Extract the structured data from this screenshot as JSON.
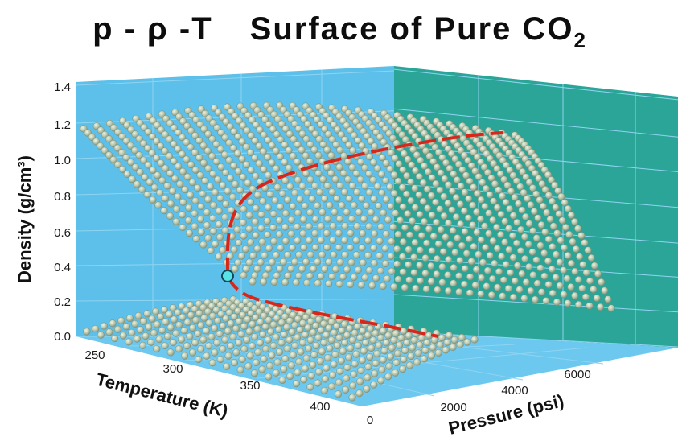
{
  "title": {
    "prefix": "p - ρ -T",
    "main": "Surface of Pure CO",
    "subscript": "2"
  },
  "colors": {
    "left_wall": "#5cc0ea",
    "back_wall": "#2aa597",
    "floor": "#6cc8ef",
    "grid": "#8fd4f2",
    "bead": "#b9c7ad",
    "bead_edge": "#7f8f78",
    "critical_line": "#d8261b",
    "critical_point": "#58e3e8"
  },
  "chart_data": {
    "type": "scatter",
    "subtype": "3d-surface",
    "title": "p - ρ -T   Surface of Pure CO₂",
    "xlabel": "Temperature (K)",
    "ylabel": "Pressure (psi)",
    "zlabel": "Density (g/cm³)",
    "x_ticks": [
      "250",
      "300",
      "350",
      "400"
    ],
    "y_ticks": [
      "0",
      "2000",
      "4000",
      "6000"
    ],
    "z_ticks": [
      "0.0",
      "0.2",
      "0.4",
      "0.6",
      "0.8",
      "1.0",
      "1.2",
      "1.4"
    ],
    "xlim": [
      250,
      430
    ],
    "ylim": [
      0,
      7000
    ],
    "zlim": [
      0,
      1.4
    ],
    "grid": true,
    "series": [
      {
        "style": "dashed-line",
        "points": [
          {
            "T": 304,
            "p": 1070,
            "rho": 0.46
          },
          {
            "T": 303,
            "p": 1030,
            "rho": 0.62
          },
          {
            "T": 310,
            "p": 1450,
            "rho": 0.78
          },
          {
            "T": 325,
            "p": 2400,
            "rho": 0.9
          },
          {
            "T": 350,
            "p": 3800,
            "rho": 0.99
          },
          {
            "T": 380,
            "p": 5200,
            "rho": 1.05
          },
          {
            "T": 415,
            "p": 6600,
            "rho": 1.08
          }
        ]
      },
      {
        "style": "dashed-line",
        "points": [
          {
            "T": 304,
            "p": 1070,
            "rho": 0.46
          },
          {
            "T": 306,
            "p": 1090,
            "rho": 0.36
          },
          {
            "T": 312,
            "p": 1120,
            "rho": 0.3
          },
          {
            "T": 330,
            "p": 1180,
            "rho": 0.24
          },
          {
            "T": 360,
            "p": 1260,
            "rho": 0.2
          },
          {
            "T": 395,
            "p": 1330,
            "rho": 0.17
          }
        ]
      },
      {
        "style": "marker",
        "points": [
          {
            "T": 304,
            "p": 1070,
            "rho": 0.47
          }
        ]
      }
    ]
  }
}
